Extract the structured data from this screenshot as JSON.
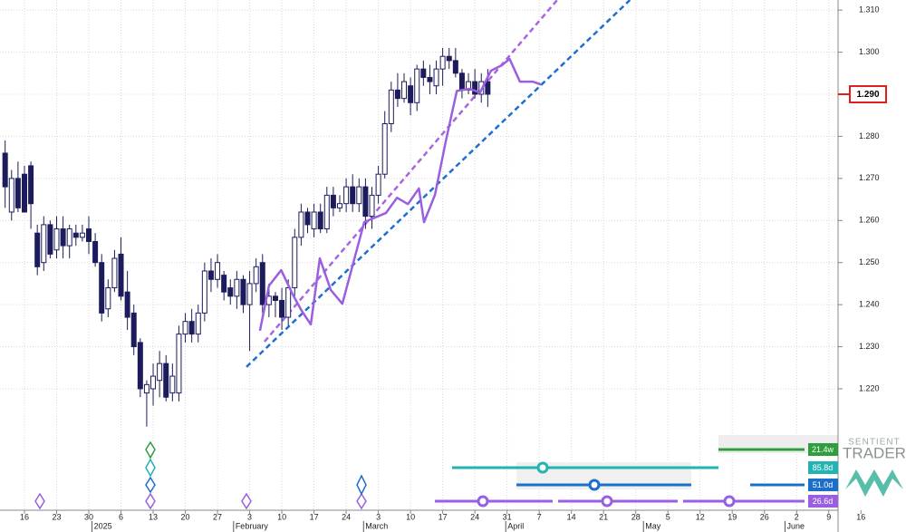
{
  "chart_data": {
    "type": "candlestick",
    "xlim": [
      -3.8,
      137
    ],
    "ylim": [
      1.21,
      1.3124
    ],
    "yticks": [
      {
        "value": 1.31,
        "label": "1.310"
      },
      {
        "value": 1.3,
        "label": "1.300"
      },
      {
        "value": 1.29,
        "label": "1.290"
      },
      {
        "value": 1.28,
        "label": "1.280"
      },
      {
        "value": 1.27,
        "label": "1.270"
      },
      {
        "value": 1.26,
        "label": "1.260"
      },
      {
        "value": 1.25,
        "label": "1.250"
      },
      {
        "value": 1.24,
        "label": "1.240"
      },
      {
        "value": 1.23,
        "label": "1.230"
      },
      {
        "value": 1.22,
        "label": "1.220"
      }
    ],
    "xticks": [
      {
        "value": 0,
        "label": "16"
      },
      {
        "value": 5,
        "label": "23"
      },
      {
        "value": 10,
        "label": "30"
      },
      {
        "value": 15,
        "label": "6"
      },
      {
        "value": 20,
        "label": "13"
      },
      {
        "value": 25,
        "label": "20"
      },
      {
        "value": 30,
        "label": "27"
      },
      {
        "value": 35,
        "label": "3"
      },
      {
        "value": 40,
        "label": "10"
      },
      {
        "value": 45,
        "label": "17"
      },
      {
        "value": 50,
        "label": "24"
      },
      {
        "value": 55,
        "label": "3"
      },
      {
        "value": 60,
        "label": "10"
      },
      {
        "value": 65,
        "label": "17"
      },
      {
        "value": 70,
        "label": "24"
      },
      {
        "value": 75,
        "label": "31"
      },
      {
        "value": 80,
        "label": "7"
      },
      {
        "value": 85,
        "label": "14"
      },
      {
        "value": 90,
        "label": "21"
      },
      {
        "value": 95,
        "label": "28"
      },
      {
        "value": 100,
        "label": "5"
      },
      {
        "value": 105,
        "label": "12"
      },
      {
        "value": 110,
        "label": "19"
      },
      {
        "value": 115,
        "label": "26"
      },
      {
        "value": 120,
        "label": "2"
      },
      {
        "value": 125,
        "label": "9"
      },
      {
        "value": 130,
        "label": "16"
      }
    ],
    "month_ticks": [
      {
        "value": 10.5,
        "label": "2025"
      },
      {
        "value": 32.5,
        "label": "February"
      },
      {
        "value": 52.7,
        "label": "March"
      },
      {
        "value": 74.8,
        "label": "April"
      },
      {
        "value": 96.2,
        "label": "May"
      },
      {
        "value": 118.2,
        "label": "June"
      }
    ],
    "grid": true,
    "up_color": "#ffffff",
    "down_color": "#1c1c5c",
    "candle_edge": "#1c1c5c",
    "x": [
      -3,
      -2,
      -1,
      0,
      1,
      2,
      3,
      4,
      5,
      6,
      7,
      8,
      9,
      10,
      11,
      12,
      13,
      14,
      15,
      16,
      17,
      18,
      19,
      20,
      21,
      22,
      23,
      24,
      25,
      26,
      27,
      28,
      29,
      30,
      31,
      32,
      33,
      34,
      35,
      36,
      37,
      38,
      39,
      40,
      41,
      42,
      43,
      44,
      45,
      46,
      47,
      48,
      49,
      50,
      51,
      52,
      53,
      54,
      55,
      56,
      57,
      58,
      59,
      60,
      61,
      62,
      63,
      64,
      65,
      66,
      67,
      68,
      69,
      70,
      71,
      72
    ],
    "open": [
      1.276,
      1.262,
      1.27,
      1.271,
      1.273,
      1.257,
      1.25,
      1.259,
      1.253,
      1.258,
      1.254,
      1.257,
      1.256,
      1.258,
      1.255,
      1.25,
      1.239,
      1.244,
      1.252,
      1.243,
      1.238,
      1.231,
      1.219,
      1.22,
      1.222,
      1.226,
      1.219,
      1.219,
      1.233,
      1.236,
      1.233,
      1.238,
      1.248,
      1.246,
      1.247,
      1.244,
      1.242,
      1.246,
      1.24,
      1.245,
      1.25,
      1.24,
      1.242,
      1.241,
      1.237,
      1.244,
      1.256,
      1.262,
      1.258,
      1.262,
      1.258,
      1.266,
      1.263,
      1.264,
      1.268,
      1.264,
      1.268,
      1.261,
      1.266,
      1.271,
      1.283,
      1.291,
      1.289,
      1.292,
      1.288,
      1.296,
      1.294,
      1.292,
      1.296,
      1.299,
      1.298,
      1.295,
      1.291,
      1.293,
      1.29,
      1.293
    ],
    "high": [
      1.279,
      1.272,
      1.274,
      1.273,
      1.274,
      1.259,
      1.261,
      1.26,
      1.261,
      1.261,
      1.259,
      1.259,
      1.259,
      1.261,
      1.257,
      1.252,
      1.246,
      1.253,
      1.256,
      1.248,
      1.24,
      1.232,
      1.222,
      1.226,
      1.229,
      1.228,
      1.226,
      1.235,
      1.238,
      1.239,
      1.24,
      1.25,
      1.251,
      1.252,
      1.248,
      1.246,
      1.248,
      1.247,
      1.248,
      1.251,
      1.252,
      1.245,
      1.243,
      1.244,
      1.246,
      1.258,
      1.264,
      1.263,
      1.264,
      1.264,
      1.268,
      1.268,
      1.266,
      1.27,
      1.271,
      1.27,
      1.27,
      1.268,
      1.273,
      1.286,
      1.293,
      1.295,
      1.295,
      1.294,
      1.297,
      1.298,
      1.297,
      1.298,
      1.301,
      1.301,
      1.301,
      1.296,
      1.295,
      1.296,
      1.295,
      1.296
    ],
    "low": [
      1.263,
      1.26,
      1.262,
      1.262,
      1.258,
      1.247,
      1.248,
      1.251,
      1.251,
      1.251,
      1.251,
      1.254,
      1.255,
      1.252,
      1.249,
      1.236,
      1.237,
      1.243,
      1.241,
      1.234,
      1.228,
      1.218,
      1.211,
      1.216,
      1.218,
      1.217,
      1.217,
      1.217,
      1.231,
      1.231,
      1.231,
      1.236,
      1.243,
      1.244,
      1.241,
      1.24,
      1.239,
      1.238,
      1.229,
      1.243,
      1.238,
      1.237,
      1.237,
      1.234,
      1.235,
      1.242,
      1.254,
      1.257,
      1.256,
      1.257,
      1.257,
      1.261,
      1.262,
      1.262,
      1.262,
      1.262,
      1.258,
      1.258,
      1.264,
      1.27,
      1.281,
      1.287,
      1.288,
      1.285,
      1.286,
      1.292,
      1.29,
      1.29,
      1.292,
      1.296,
      1.294,
      1.289,
      1.29,
      1.289,
      1.288,
      1.287
    ],
    "close": [
      1.268,
      1.27,
      1.263,
      1.262,
      1.264,
      1.249,
      1.259,
      1.252,
      1.258,
      1.254,
      1.258,
      1.256,
      1.257,
      1.255,
      1.25,
      1.238,
      1.244,
      1.251,
      1.242,
      1.237,
      1.23,
      1.22,
      1.221,
      1.223,
      1.226,
      1.218,
      1.223,
      1.233,
      1.236,
      1.233,
      1.238,
      1.248,
      1.246,
      1.25,
      1.243,
      1.242,
      1.246,
      1.24,
      1.245,
      1.249,
      1.24,
      1.242,
      1.241,
      1.237,
      1.244,
      1.256,
      1.262,
      1.259,
      1.262,
      1.258,
      1.266,
      1.263,
      1.264,
      1.268,
      1.264,
      1.268,
      1.261,
      1.266,
      1.271,
      1.283,
      1.291,
      1.289,
      1.293,
      1.288,
      1.296,
      1.294,
      1.293,
      1.296,
      1.299,
      1.298,
      1.295,
      1.291,
      1.293,
      1.29,
      1.293,
      1.29
    ],
    "forecast": {
      "color": "#9a5fe0",
      "x": [
        36.6,
        38.0,
        39.9,
        41.7,
        43.1,
        44.5,
        45.9,
        47.6,
        49.4,
        51.1,
        52.8,
        54.5,
        56.2,
        57.9,
        59.6,
        61.3,
        62.1,
        63.8,
        65.5,
        67.2,
        69.2,
        70.8,
        72.5,
        74.2,
        75.4,
        77.0,
        79.0,
        80.3
      ],
      "values": [
        1.2338,
        1.2445,
        1.2482,
        1.2424,
        1.2385,
        1.2353,
        1.251,
        1.2435,
        1.2402,
        1.2499,
        1.2596,
        1.2607,
        1.2618,
        1.2654,
        1.2639,
        1.2676,
        1.2596,
        1.2661,
        1.279,
        1.2908,
        1.2913,
        1.2904,
        1.2956,
        1.2969,
        1.2984,
        1.293,
        1.293,
        1.2923
      ]
    },
    "trend_lines": [
      {
        "color": "#1e6fd0",
        "x": [
          34.5,
          94.1
        ],
        "values": [
          1.2252,
          1.3124
        ]
      },
      {
        "color": "#a766e0",
        "x": [
          37.3,
          82.8
        ],
        "values": [
          1.2312,
          1.3124
        ]
      }
    ],
    "current_price": {
      "value": 1.29,
      "label": "1.290"
    },
    "cycles": [
      {
        "label": "21.4w",
        "color": "#2e9e3e"
      },
      {
        "label": "85.8d",
        "color": "#22b3b3"
      },
      {
        "label": "51.0d",
        "color": "#1c6fc8"
      },
      {
        "label": "26.6d",
        "color": "#9a5fe0"
      }
    ]
  },
  "logo": {
    "line1": "SENTIENT",
    "line2": "TRADER"
  }
}
